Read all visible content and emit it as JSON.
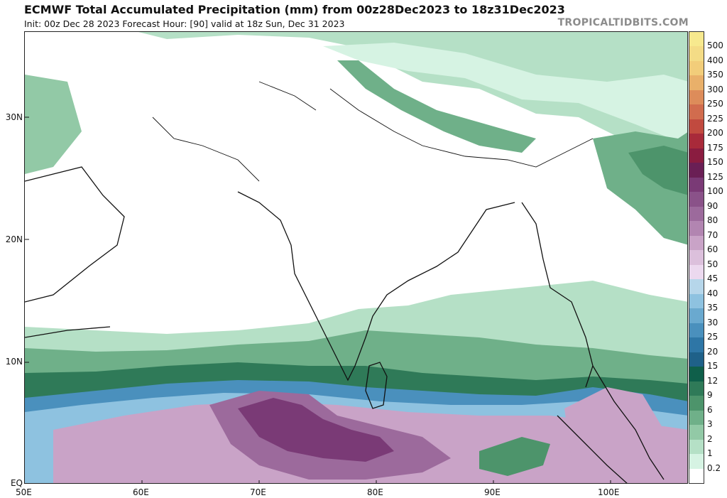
{
  "header": {
    "title": "ECMWF Total Accumulated Precipitation (mm) from 00z28Dec2023 to 18z31Dec2023",
    "subtitle": "Init: 00z Dec 28 2023   Forecast Hour: [90]   valid at 18z Sun, Dec 31 2023",
    "brand": "TROPICALTIDBITS.COM"
  },
  "axes": {
    "lat_labels": [
      "30N",
      "20N",
      "10N",
      "EQ"
    ],
    "lon_labels": [
      "50E",
      "60E",
      "70E",
      "80E",
      "90E",
      "100E"
    ]
  },
  "legend": {
    "levels": [
      {
        "label": "500",
        "color": "#f7e98e"
      },
      {
        "label": "400",
        "color": "#f4dc86"
      },
      {
        "label": "350",
        "color": "#f2cd7a"
      },
      {
        "label": "300",
        "color": "#e9b06a"
      },
      {
        "label": "250",
        "color": "#dd8c5a"
      },
      {
        "label": "225",
        "color": "#d16c4e"
      },
      {
        "label": "200",
        "color": "#c14a3f"
      },
      {
        "label": "175",
        "color": "#a82a3a"
      },
      {
        "label": "150",
        "color": "#8a1c40"
      },
      {
        "label": "125",
        "color": "#6a1f55"
      },
      {
        "label": "100",
        "color": "#7a3a76"
      },
      {
        "label": "90",
        "color": "#8a5289"
      },
      {
        "label": "80",
        "color": "#9c6a9c"
      },
      {
        "label": "70",
        "color": "#b285b1"
      },
      {
        "label": "60",
        "color": "#c9a3c7"
      },
      {
        "label": "50",
        "color": "#dcc0dc"
      },
      {
        "label": "45",
        "color": "#ecd9ef"
      },
      {
        "label": "40",
        "color": "#b6d6ea"
      },
      {
        "label": "35",
        "color": "#8ec2e0"
      },
      {
        "label": "30",
        "color": "#6aa9cf"
      },
      {
        "label": "25",
        "color": "#4a90bd"
      },
      {
        "label": "20",
        "color": "#2e76a6"
      },
      {
        "label": "15",
        "color": "#1f6189"
      },
      {
        "label": "12",
        "color": "#0f5f4a"
      },
      {
        "label": "9",
        "color": "#2f7a58"
      },
      {
        "label": "6",
        "color": "#4d946b"
      },
      {
        "label": "3",
        "color": "#6fb089"
      },
      {
        "label": "2",
        "color": "#92c9a6"
      },
      {
        "label": "1",
        "color": "#b5e0c6"
      },
      {
        "label": "0.2",
        "color": "#d6f3e3"
      },
      {
        "label": "",
        "color": "#ffffff"
      }
    ]
  }
}
